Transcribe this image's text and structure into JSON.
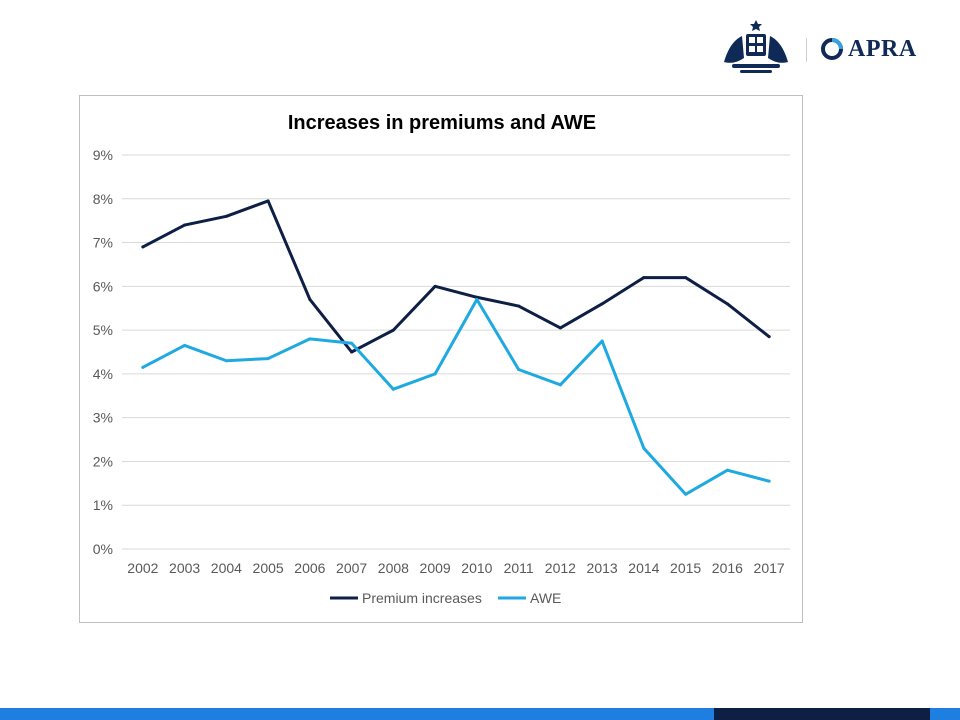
{
  "header": {
    "logo_text": "APRA",
    "crest_icon": "coat-of-arms-icon",
    "logo_icon": "apra-swirl-icon"
  },
  "colors": {
    "premium": "#0d1f44",
    "awe": "#1ea9e1",
    "grid": "#d9d9d9",
    "text": "#595959",
    "footer_blue": "#1e7fe0",
    "footer_navy": "#0d1f44"
  },
  "chart_data": {
    "type": "line",
    "title": "Increases in premiums and AWE",
    "xlabel": "",
    "ylabel": "",
    "x": [
      "2002",
      "2003",
      "2004",
      "2005",
      "2006",
      "2007",
      "2008",
      "2009",
      "2010",
      "2011",
      "2012",
      "2013",
      "2014",
      "2015",
      "2016",
      "2017"
    ],
    "ylim": [
      0,
      9
    ],
    "yticks": [
      0,
      1,
      2,
      3,
      4,
      5,
      6,
      7,
      8,
      9
    ],
    "ytick_labels": [
      "0%",
      "1%",
      "2%",
      "3%",
      "4%",
      "5%",
      "6%",
      "7%",
      "8%",
      "9%"
    ],
    "grid": true,
    "legend": "bottom",
    "series": [
      {
        "name": "Premium increases",
        "color": "#0d1f44",
        "values": [
          6.9,
          7.4,
          7.6,
          7.95,
          5.7,
          4.5,
          5.0,
          6.0,
          5.75,
          5.55,
          5.05,
          5.6,
          6.2,
          6.2,
          5.6,
          4.85
        ]
      },
      {
        "name": "AWE",
        "color": "#1ea9e1",
        "values": [
          4.15,
          4.65,
          4.3,
          4.35,
          4.8,
          4.7,
          3.65,
          4.0,
          5.7,
          4.1,
          3.75,
          4.75,
          2.3,
          1.25,
          1.8,
          1.55
        ]
      }
    ]
  }
}
